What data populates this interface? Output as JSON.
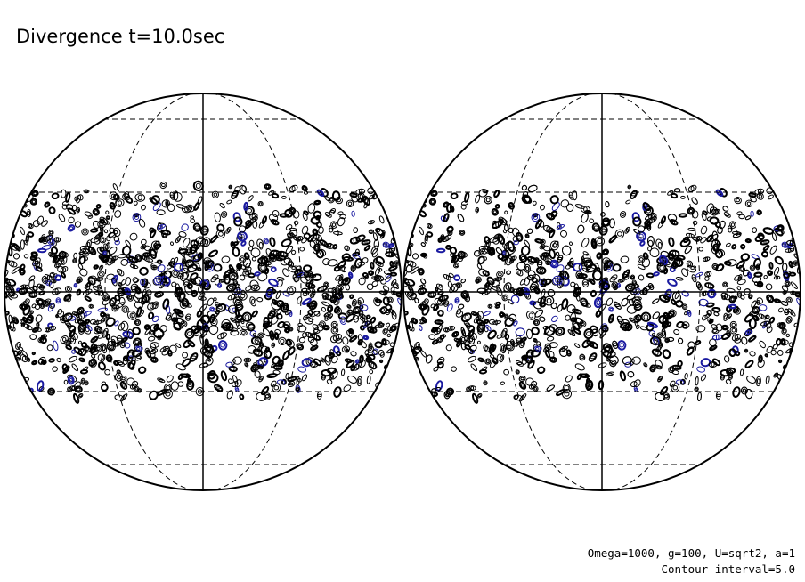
{
  "title": "Divergence t=10.0sec",
  "annotations": [
    "Omega=1000, g=100, U=sqrt2, a=1",
    "Contour interval=5.0"
  ]
}
